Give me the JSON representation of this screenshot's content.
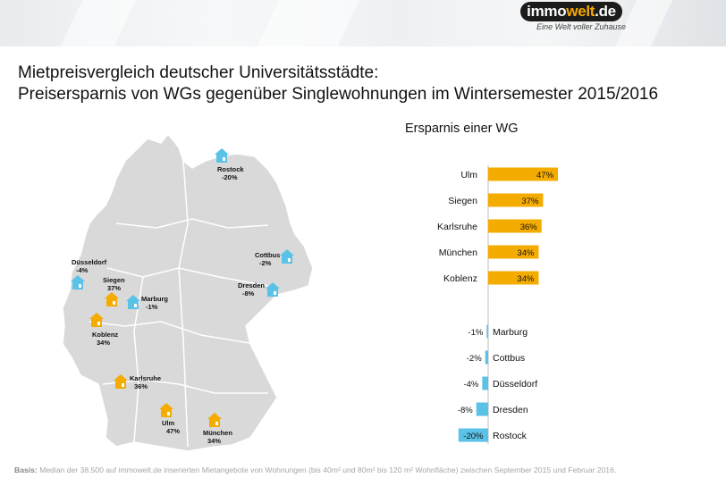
{
  "header": {
    "logo_prefix": "immo",
    "logo_highlight": "welt",
    "logo_suffix": ".de",
    "tagline": "Eine Welt voller Zuhause"
  },
  "title_line1": "Mietpreisvergleich deutscher Universitätsstädte:",
  "title_line2": "Preisersparnis von WGs gegenüber Singlewohnungen im Wintersemester 2015/2016",
  "footer": {
    "label": "Basis:",
    "text": "Median der 38.500 auf immowelt.de inserierten Mietangebote von Wohnungen (bis 40m² und 80m² bis 120 m² Wohnfläche) zwischen September 2015 und Februar 2016."
  },
  "colors": {
    "positive": "#f5ac00",
    "negative": "#5bc2e7",
    "map_fill": "#d9d9d9",
    "map_border": "#ffffff"
  },
  "map_cities": [
    {
      "name": "Rostock",
      "value": "-20%",
      "color": "blue"
    },
    {
      "name": "Cottbus",
      "value": "-2%",
      "color": "blue"
    },
    {
      "name": "Düsseldorf",
      "value": "-4%",
      "color": "blue"
    },
    {
      "name": "Siegen",
      "value": "37%",
      "color": "orange"
    },
    {
      "name": "Marburg",
      "value": "-1%",
      "color": "blue"
    },
    {
      "name": "Dresden",
      "value": "-8%",
      "color": "blue"
    },
    {
      "name": "Koblenz",
      "value": "34%",
      "color": "orange"
    },
    {
      "name": "Karlsruhe",
      "value": "36%",
      "color": "orange"
    },
    {
      "name": "Ulm",
      "value": "47%",
      "color": "orange"
    },
    {
      "name": "München",
      "value": "34%",
      "color": "orange"
    }
  ],
  "chart_data": {
    "type": "bar",
    "orientation": "horizontal",
    "title": "Ersparnis einer WG",
    "categories": [
      "Ulm",
      "Siegen",
      "Karlsruhe",
      "München",
      "Koblenz",
      "Marburg",
      "Cottbus",
      "Düsseldorf",
      "Dresden",
      "Rostock"
    ],
    "values": [
      47,
      37,
      36,
      34,
      34,
      -1,
      -2,
      -4,
      -8,
      -20
    ],
    "unit": "%",
    "grid": false,
    "legend": "none"
  }
}
